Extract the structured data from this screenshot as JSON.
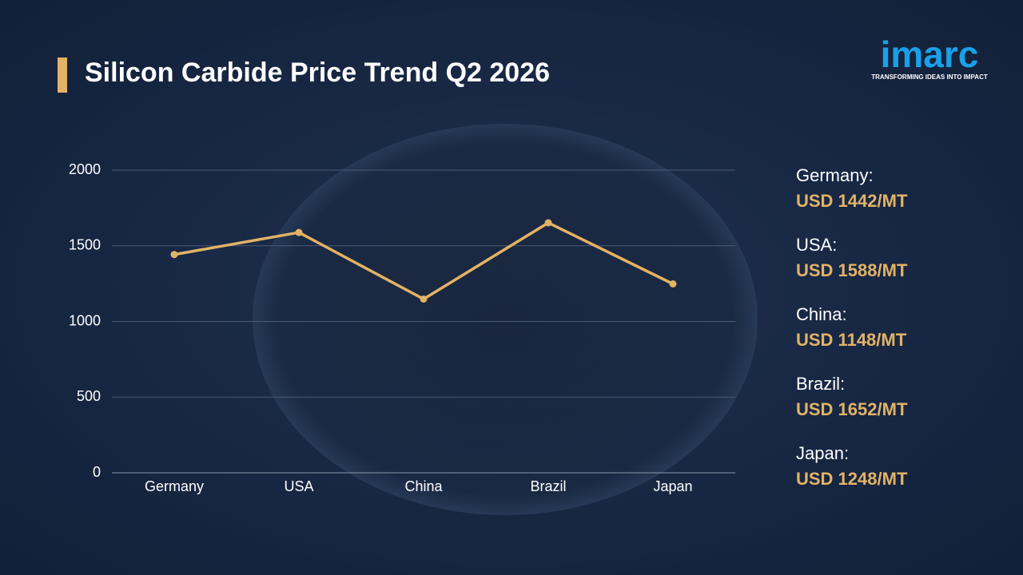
{
  "chart_data": {
    "type": "line",
    "title": "Silicon Carbide Price Trend Q2 2026",
    "categories": [
      "Germany",
      "USA",
      "China",
      "Brazil",
      "Japan"
    ],
    "values": [
      1442,
      1588,
      1148,
      1652,
      1248
    ],
    "value_labels": [
      "USD 1442/MT",
      "USD 1588/MT",
      "USD 1148/MT",
      "USD 1652/MT",
      "USD 1248/MT"
    ],
    "side_labels": [
      "Germany:",
      "USA:",
      "China:",
      "Brazil:",
      "Japan:"
    ],
    "color": "#e2b366",
    "ylim": [
      0,
      2000
    ],
    "yticks": [
      0,
      500,
      1000,
      1500,
      2000
    ],
    "grid": true
  },
  "logo": {
    "name": "imarc",
    "tagline": "TRANSFORMING IDEAS INTO IMPACT"
  }
}
